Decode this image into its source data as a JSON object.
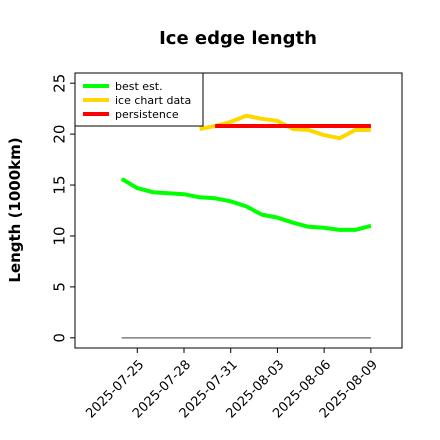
{
  "chart_data": {
    "type": "line",
    "title": "Ice edge length",
    "xlabel": "",
    "ylabel": "Length (1000km)",
    "ylim": [
      -1,
      26
    ],
    "yticks": [
      0,
      5,
      10,
      15,
      20,
      25
    ],
    "xlim": [
      "2025-07-21",
      "2025-08-11"
    ],
    "xticks": [
      "2025-07-25",
      "2025-07-28",
      "2025-07-31",
      "2025-08-03",
      "2025-08-06",
      "2025-08-09"
    ],
    "grid": false,
    "legend_position": "top-left",
    "baseline": {
      "y": 0,
      "color": "#808080"
    },
    "series": [
      {
        "name": "best est.",
        "color": "#00ff00",
        "points": [
          [
            "2025-07-24",
            15.6
          ],
          [
            "2025-07-25",
            14.7
          ],
          [
            "2025-07-26",
            14.3
          ],
          [
            "2025-07-27",
            14.2
          ],
          [
            "2025-07-28",
            14.1
          ],
          [
            "2025-07-29",
            13.8
          ],
          [
            "2025-07-30",
            13.7
          ],
          [
            "2025-07-31",
            13.4
          ],
          [
            "2025-08-01",
            12.9
          ],
          [
            "2025-08-02",
            12.1
          ],
          [
            "2025-08-03",
            11.8
          ],
          [
            "2025-08-04",
            11.3
          ],
          [
            "2025-08-05",
            10.9
          ],
          [
            "2025-08-06",
            10.8
          ],
          [
            "2025-08-07",
            10.6
          ],
          [
            "2025-08-08",
            10.6
          ],
          [
            "2025-08-09",
            11.0
          ]
        ]
      },
      {
        "name": "ice chart data",
        "color": "#ffd700",
        "points": [
          [
            "2025-07-29",
            20.5
          ],
          [
            "2025-07-30",
            20.8
          ],
          [
            "2025-07-31",
            21.2
          ],
          [
            "2025-08-01",
            21.8
          ],
          [
            "2025-08-02",
            21.5
          ],
          [
            "2025-08-03",
            21.3
          ],
          [
            "2025-08-04",
            20.5
          ],
          [
            "2025-08-05",
            20.4
          ],
          [
            "2025-08-06",
            19.9
          ],
          [
            "2025-08-07",
            19.6
          ],
          [
            "2025-08-08",
            20.4
          ],
          [
            "2025-08-09",
            20.4
          ]
        ]
      },
      {
        "name": "persistence",
        "color": "#ff0000",
        "points": [
          [
            "2025-07-30",
            20.8
          ],
          [
            "2025-08-09",
            20.8
          ]
        ]
      }
    ]
  }
}
